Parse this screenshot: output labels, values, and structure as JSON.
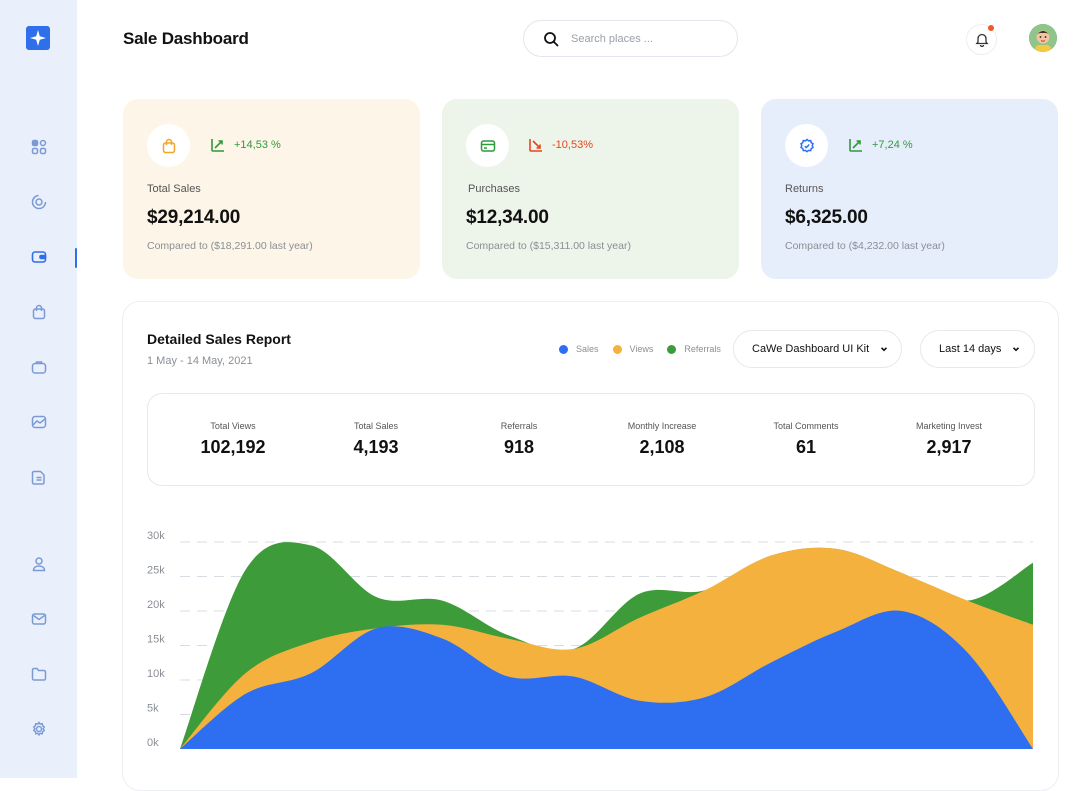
{
  "header": {
    "title": "Sale Dashboard",
    "search_placeholder": "Search places ..."
  },
  "sidebar": {
    "items": [
      {
        "icon": "grid-icon"
      },
      {
        "icon": "analytics-icon"
      },
      {
        "icon": "wallet-icon",
        "active": true
      },
      {
        "icon": "shopping-bag-icon"
      },
      {
        "icon": "briefcase-icon"
      },
      {
        "icon": "chart-area-icon"
      },
      {
        "icon": "document-icon"
      },
      {
        "icon": "user-icon"
      },
      {
        "icon": "mail-icon"
      },
      {
        "icon": "folder-icon"
      },
      {
        "icon": "settings-icon"
      }
    ]
  },
  "cards": [
    {
      "label": "Total Sales",
      "value": "$29,214.00",
      "change": "+14,53 %",
      "compare": "Compared to ($18,291.00 last year)",
      "bg": "#fdf5e8",
      "trend_color": "#2f9a3a",
      "icon": "shopping-bag-icon"
    },
    {
      "label": "Purchases",
      "value": "$12,34.00",
      "change": "-10,53%",
      "compare": "Compared to ($15,311.00 last year)",
      "bg": "#edf4ea",
      "trend_color": "#e8451e",
      "icon": "credit-card-icon"
    },
    {
      "label": "Returns",
      "value": "$6,325.00",
      "change": "+7,24 %",
      "compare": "Compared to ($4,232.00 last year)",
      "bg": "#e7eefb",
      "trend_color": "#2f9a3a",
      "icon": "badge-check-icon"
    }
  ],
  "report": {
    "title": "Detailed Sales Report",
    "subtitle": "1 May - 14 May, 2021",
    "legend": [
      {
        "name": "Sales",
        "color": "#2d6ff0"
      },
      {
        "name": "Views",
        "color": "#f4b13d"
      },
      {
        "name": "Referrals",
        "color": "#3e9b3a"
      }
    ],
    "dropdown_kit": "CaWe Dashboard UI Kit",
    "dropdown_range": "Last 14 days",
    "stats": [
      {
        "label": "Total Views",
        "value": "102,192"
      },
      {
        "label": "Total Sales",
        "value": "4,193"
      },
      {
        "label": "Referrals",
        "value": "918"
      },
      {
        "label": "Monthly Increase",
        "value": "2,108"
      },
      {
        "label": "Total Comments",
        "value": "61"
      },
      {
        "label": "Marketing Invest",
        "value": "2,917"
      }
    ]
  },
  "chart_data": {
    "type": "area",
    "y_ticks": [
      "30k",
      "25k",
      "20k",
      "15k",
      "10k",
      "5k",
      "0k"
    ],
    "ylim": [
      0,
      30000
    ],
    "grid": "dashed horizontal",
    "series": [
      {
        "name": "Sales",
        "values": [
          0,
          8000,
          11000,
          17500,
          16000,
          10500,
          10500,
          7000,
          7500,
          12500,
          17000,
          20000,
          14000,
          0
        ]
      },
      {
        "name": "Views",
        "values": [
          0,
          11000,
          15500,
          17500,
          18000,
          16000,
          14500,
          19000,
          23000,
          28000,
          29000,
          25500,
          21500,
          18000
        ]
      },
      {
        "name": "Referrals",
        "values": [
          0,
          26000,
          29500,
          22000,
          21500,
          16500,
          14500,
          22500,
          23000,
          28000,
          29000,
          25500,
          21500,
          27000
        ]
      }
    ]
  }
}
